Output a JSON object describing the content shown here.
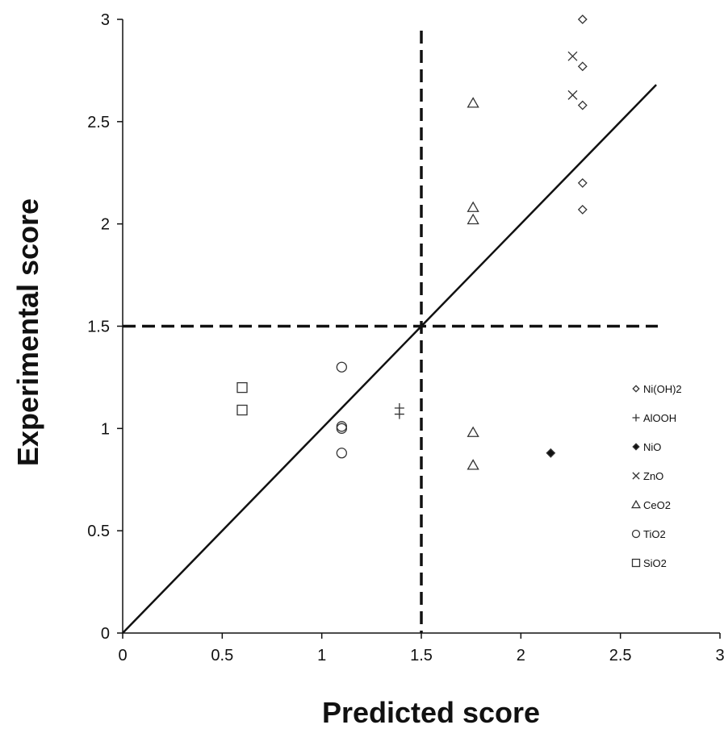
{
  "chart_data": {
    "type": "scatter",
    "xlabel": "Predicted score",
    "ylabel": "Experimental score",
    "xlim": [
      0,
      3
    ],
    "ylim": [
      0,
      3
    ],
    "xticks": [
      "0",
      "0.5",
      "1",
      "1.5",
      "2",
      "2.5",
      "3"
    ],
    "yticks": [
      "0",
      "0.5",
      "1",
      "1.5",
      "2",
      "2.5",
      "3"
    ],
    "grid": false,
    "legend_position": "right",
    "reference_lines": {
      "diagonal": {
        "x": [
          0,
          2.68
        ],
        "y": [
          0,
          2.68
        ]
      },
      "threshold_x": 1.5,
      "threshold_y": 1.5
    },
    "series": [
      {
        "name": "Ni(OH)2",
        "marker": "diamond-open",
        "points": [
          [
            2.31,
            3.0
          ],
          [
            2.31,
            2.77
          ],
          [
            2.31,
            2.58
          ],
          [
            2.31,
            2.2
          ],
          [
            2.31,
            2.07
          ]
        ]
      },
      {
        "name": "AlOOH",
        "marker": "plus",
        "points": [
          [
            1.39,
            1.1
          ],
          [
            1.39,
            1.07
          ]
        ]
      },
      {
        "name": "NiO",
        "marker": "diamond-filled",
        "points": [
          [
            2.15,
            0.88
          ]
        ]
      },
      {
        "name": "ZnO",
        "marker": "x",
        "points": [
          [
            2.26,
            2.82
          ],
          [
            2.26,
            2.63
          ]
        ]
      },
      {
        "name": "CeO2",
        "marker": "triangle",
        "points": [
          [
            1.76,
            2.59
          ],
          [
            1.76,
            2.08
          ],
          [
            1.76,
            2.02
          ],
          [
            1.76,
            0.98
          ],
          [
            1.76,
            0.82
          ]
        ]
      },
      {
        "name": "TiO2",
        "marker": "circle",
        "points": [
          [
            1.1,
            1.3
          ],
          [
            1.1,
            1.01
          ],
          [
            1.1,
            1.0
          ],
          [
            1.1,
            0.88
          ]
        ]
      },
      {
        "name": "SiO2",
        "marker": "square",
        "points": [
          [
            0.6,
            1.2
          ],
          [
            0.6,
            1.09
          ]
        ]
      }
    ]
  }
}
